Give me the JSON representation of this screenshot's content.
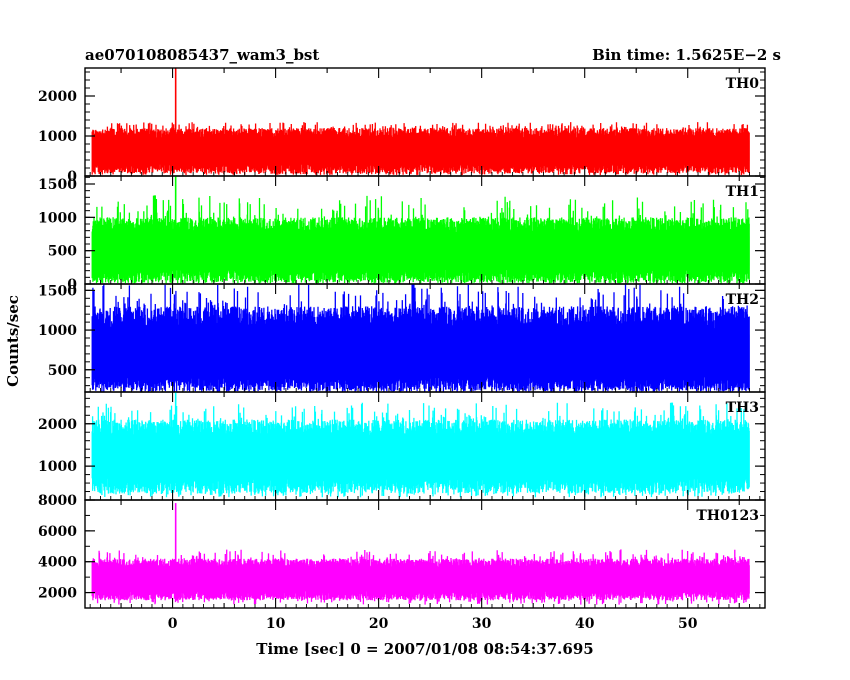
{
  "title_left": "ae070108085437_wam3_bst",
  "title_right": "Bin time: 1.5625E−2 s",
  "chart_data": {
    "type": "line",
    "xlabel": "Time [sec] 0 = 2007/01/08 08:54:37.695",
    "ylabel": "Counts/sec",
    "xlim": [
      -8.5,
      57.5
    ],
    "x_range": [
      -7.8,
      56
    ],
    "bin_time": 0.015625,
    "x_ticks": [
      0,
      10,
      20,
      30,
      40,
      50
    ],
    "grid": false,
    "panels": [
      {
        "name": "TH0",
        "color": "#ff0000",
        "ylim": [
          0,
          2700
        ],
        "y_ticks": [
          0,
          1000,
          2000
        ],
        "noise": {
          "median": 620,
          "low": 60,
          "high": 1200,
          "peak": 1350
        },
        "spike": {
          "x": 0.3,
          "value": 2700
        }
      },
      {
        "name": "TH1",
        "color": "#00ff00",
        "ylim": [
          0,
          1620
        ],
        "y_ticks": [
          0,
          500,
          1000,
          1500
        ],
        "noise": {
          "median": 480,
          "low": 20,
          "high": 1000,
          "peak": 1330
        },
        "spike": {
          "x": 0.3,
          "value": 1620
        }
      },
      {
        "name": "TH2",
        "color": "#0000ff",
        "ylim": [
          220,
          1580
        ],
        "y_ticks": [
          500,
          1000,
          1500
        ],
        "noise": {
          "median": 650,
          "low": 230,
          "high": 1300,
          "peak": 1580
        },
        "spike": null
      },
      {
        "name": "TH3",
        "color": "#00ffff",
        "ylim": [
          200,
          2750
        ],
        "y_ticks": [
          1000,
          2000
        ],
        "noise": {
          "median": 1200,
          "low": 350,
          "high": 2100,
          "peak": 2500
        },
        "spike": {
          "x": 0.3,
          "value": 2750
        }
      },
      {
        "name": "TH0123",
        "color": "#ff00ff",
        "ylim": [
          1000,
          8000
        ],
        "y_ticks": [
          2000,
          4000,
          6000,
          8000
        ],
        "noise": {
          "median": 2900,
          "low": 1500,
          "high": 4200,
          "peak": 4800
        },
        "spike": {
          "x": 0.3,
          "value": 7800
        }
      }
    ]
  }
}
